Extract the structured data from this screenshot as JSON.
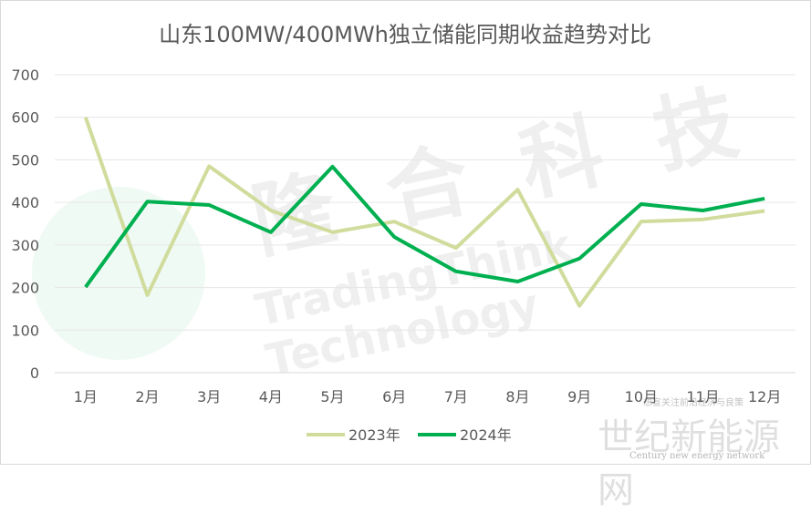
{
  "chart_data": {
    "type": "line",
    "title": "山东100MW/400MWh独立储能同期收益趋势对比",
    "categories": [
      "1月",
      "2月",
      "3月",
      "4月",
      "5月",
      "6月",
      "7月",
      "8月",
      "9月",
      "10月",
      "11月",
      "12月"
    ],
    "series": [
      {
        "name": "2023年",
        "color": "#d0dc9c",
        "values": [
          600,
          182,
          485,
          381,
          330,
          355,
          293,
          430,
          157,
          355,
          360,
          380
        ]
      },
      {
        "name": "2024年",
        "color": "#00b050",
        "values": [
          201,
          402,
          394,
          330,
          484,
          319,
          238,
          214,
          268,
          396,
          381,
          409
        ]
      }
    ],
    "yticks": [
      0,
      100,
      200,
      300,
      400,
      500,
      600,
      700
    ],
    "ylim": [
      0,
      700
    ],
    "grid": true,
    "legend_position": "bottom",
    "xlabel": "",
    "ylabel": ""
  },
  "watermarks": {
    "cn_logo": "隆合科技",
    "en_logo": "TradingThink Technology",
    "site_cn": "世纪新能源网",
    "site_en": "Century new energy network",
    "site_tag": "想宣关注前沿经济与良策"
  }
}
